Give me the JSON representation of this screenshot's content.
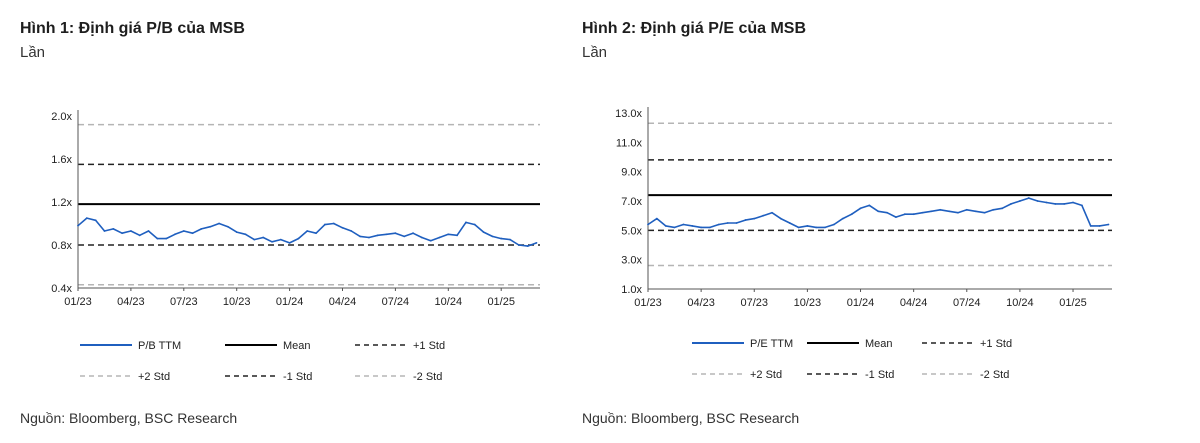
{
  "charts": [
    {
      "title": "Hình 1: Định giá P/B của MSB",
      "unit": "Lần",
      "source": "Nguồn: Bloomberg, BSC Research",
      "chart_data": {
        "type": "line",
        "title": "Hình 1: Định giá P/B của MSB",
        "ylabel": "Lần",
        "ylim": [
          0.4,
          2.0
        ],
        "yticks": [
          0.4,
          0.8,
          1.2,
          1.6,
          2.0
        ],
        "ytick_labels": [
          "0.4x",
          "0.8x",
          "1.2x",
          "1.6x",
          "2.0x"
        ],
        "xticks": [
          "01/23",
          "04/23",
          "07/23",
          "10/23",
          "01/24",
          "04/24",
          "07/24",
          "10/24",
          "01/25"
        ],
        "x_end": 26.2,
        "series": [
          {
            "name": "P/B TTM",
            "style": "solid",
            "color": "#1f5fbf",
            "x": [
              0,
              0.5,
              1,
              1.5,
              2,
              2.5,
              3,
              3.5,
              4,
              4.5,
              5,
              5.5,
              6,
              6.5,
              7,
              7.5,
              8,
              8.5,
              9,
              9.5,
              10,
              10.5,
              11,
              11.5,
              12,
              12.5,
              13,
              13.5,
              14,
              14.5,
              15,
              15.5,
              16,
              16.5,
              17,
              17.5,
              18,
              18.5,
              19,
              19.5,
              20,
              20.5,
              21,
              21.5,
              22,
              22.5,
              23,
              23.5,
              24,
              24.5,
              25,
              25.5,
              26
            ],
            "y": [
              0.98,
              1.05,
              1.03,
              0.93,
              0.95,
              0.91,
              0.93,
              0.89,
              0.93,
              0.86,
              0.86,
              0.9,
              0.93,
              0.91,
              0.95,
              0.97,
              1.0,
              0.97,
              0.92,
              0.9,
              0.85,
              0.87,
              0.83,
              0.85,
              0.82,
              0.86,
              0.93,
              0.91,
              0.99,
              1.0,
              0.96,
              0.93,
              0.88,
              0.87,
              0.89,
              0.9,
              0.91,
              0.88,
              0.91,
              0.87,
              0.84,
              0.87,
              0.9,
              0.89,
              1.01,
              0.99,
              0.92,
              0.88,
              0.86,
              0.85,
              0.8,
              0.79,
              0.82
            ]
          },
          {
            "name": "Mean",
            "style": "solid",
            "color": "#000000",
            "value": 1.18
          },
          {
            "name": "+1 Std",
            "style": "dashed",
            "color": "#222222",
            "value": 1.55
          },
          {
            "name": "+2 Std",
            "style": "dashed-light",
            "color": "#b5b5b5",
            "value": 1.92
          },
          {
            "name": "-1 Std",
            "style": "dashed",
            "color": "#222222",
            "value": 0.8
          },
          {
            "name": "-2 Std",
            "style": "dashed-light",
            "color": "#b5b5b5",
            "value": 0.43
          }
        ],
        "legend": "bottom",
        "grid": false
      }
    },
    {
      "title": "Hình 2: Định giá P/E của MSB",
      "unit": "Lần",
      "source": "Nguồn: Bloomberg, BSC Research",
      "chart_data": {
        "type": "line",
        "title": "Hình 2: Định giá P/E của MSB",
        "ylabel": "Lần",
        "ylim": [
          1.0,
          13.0
        ],
        "yticks": [
          1,
          3,
          5,
          7,
          9,
          11,
          13
        ],
        "ytick_labels": [
          "1.0x",
          "3.0x",
          "5.0x",
          "7.0x",
          "9.0x",
          "11.0x",
          "13.0x"
        ],
        "xticks": [
          "01/23",
          "04/23",
          "07/23",
          "10/23",
          "01/24",
          "04/24",
          "07/24",
          "10/24",
          "01/25"
        ],
        "x_end": 26.2,
        "series": [
          {
            "name": "P/E TTM",
            "style": "solid",
            "color": "#1f5fbf",
            "x": [
              0,
              0.5,
              1,
              1.5,
              2,
              2.5,
              3,
              3.5,
              4,
              4.5,
              5,
              5.5,
              6,
              6.5,
              7,
              7.5,
              8,
              8.5,
              9,
              9.5,
              10,
              10.5,
              11,
              11.5,
              12,
              12.5,
              13,
              13.5,
              14,
              14.5,
              15,
              15.5,
              16,
              16.5,
              17,
              17.5,
              18,
              18.5,
              19,
              19.5,
              20,
              20.5,
              21,
              21.5,
              22,
              22.5,
              23,
              23.5,
              24,
              24.5,
              25,
              25.5,
              26
            ],
            "y": [
              5.4,
              5.8,
              5.3,
              5.2,
              5.4,
              5.3,
              5.2,
              5.2,
              5.4,
              5.5,
              5.5,
              5.7,
              5.8,
              6.0,
              6.2,
              5.8,
              5.5,
              5.2,
              5.3,
              5.2,
              5.2,
              5.4,
              5.8,
              6.1,
              6.5,
              6.7,
              6.3,
              6.2,
              5.9,
              6.1,
              6.1,
              6.2,
              6.3,
              6.4,
              6.3,
              6.2,
              6.4,
              6.3,
              6.2,
              6.4,
              6.5,
              6.8,
              7.0,
              7.2,
              7.0,
              6.9,
              6.8,
              6.8,
              6.9,
              6.7,
              5.3,
              5.3,
              5.4
            ]
          },
          {
            "name": "Mean",
            "style": "solid",
            "color": "#000000",
            "value": 7.4
          },
          {
            "name": "+1 Std",
            "style": "dashed",
            "color": "#222222",
            "value": 9.8
          },
          {
            "name": "+2 Std",
            "style": "dashed-light",
            "color": "#b5b5b5",
            "value": 12.3
          },
          {
            "name": "-1 Std",
            "style": "dashed",
            "color": "#222222",
            "value": 5.0
          },
          {
            "name": "-2 Std",
            "style": "dashed-light",
            "color": "#b5b5b5",
            "value": 2.6
          }
        ],
        "legend": "bottom",
        "grid": false
      }
    }
  ]
}
